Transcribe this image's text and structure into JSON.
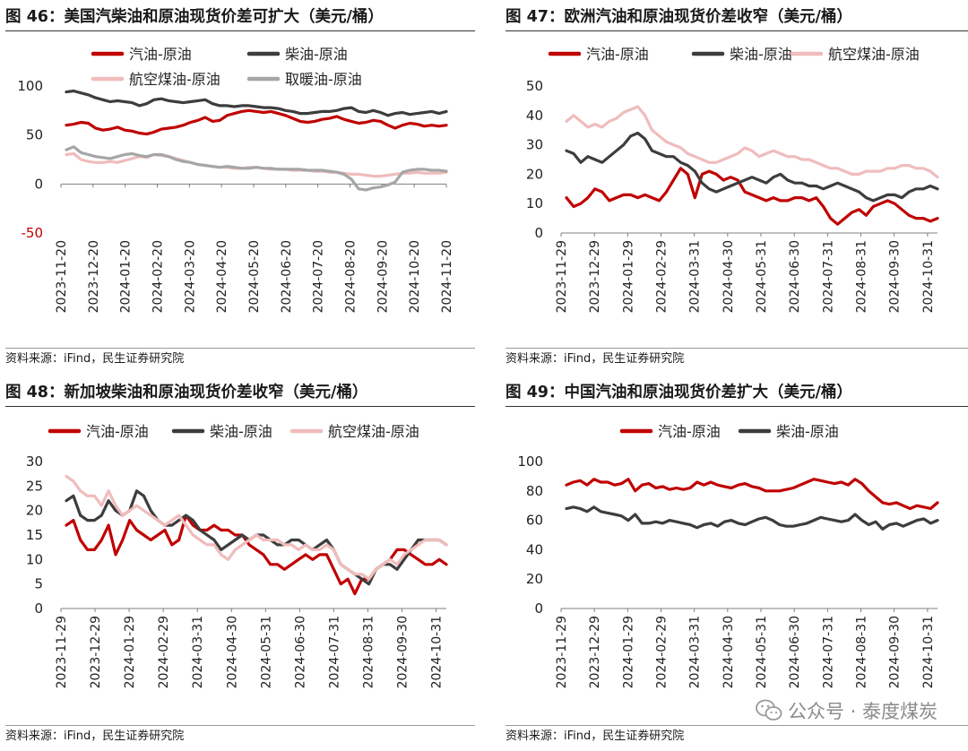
{
  "panels": [
    {
      "title": "图 46：美国汽柴油和原油现货价差可扩大（美元/桶）",
      "source": "资料来源：iFind，民生证券研究院"
    },
    {
      "title": "图 47：欧洲汽油和原油现货价差收窄（美元/桶）",
      "source": "资料来源：iFind，民生证券研究院"
    },
    {
      "title": "图 48：新加坡柴油和原油现货价差收窄（美元/桶）",
      "source": "资料来源：iFind，民生证券研究院"
    },
    {
      "title": "图 49：中国汽油和原油现货价差扩大（美元/桶）",
      "source": "资料来源：iFind，民生证券研究院"
    }
  ],
  "watermark": "公众号 · 泰度煤炭",
  "colors": {
    "gasoline": "#c00000",
    "diesel": "#3d3d3d",
    "jet": "#f0bcbc",
    "heating": "#a6a6a6"
  },
  "chart_data": [
    {
      "type": "line",
      "ylim": [
        -50,
        100
      ],
      "yticks": [
        -50,
        0,
        50,
        100
      ],
      "x_tick_labels": [
        "2023-11-20",
        "2023-12-20",
        "2024-01-20",
        "2024-02-20",
        "2024-03-20",
        "2024-04-20",
        "2024-05-20",
        "2024-06-20",
        "2024-07-20",
        "2024-08-20",
        "2024-09-20",
        "2024-10-20",
        "2024-11-20"
      ],
      "series": [
        {
          "name": "汽油-原油",
          "color": "#c00000",
          "values": [
            60,
            61,
            63,
            62,
            57,
            55,
            56,
            58,
            55,
            54,
            52,
            51,
            53,
            56,
            57,
            58,
            60,
            63,
            65,
            68,
            64,
            65,
            70,
            72,
            74,
            75,
            74,
            73,
            74,
            72,
            70,
            67,
            64,
            63,
            64,
            66,
            67,
            69,
            66,
            64,
            62,
            63,
            65,
            64,
            60,
            57,
            60,
            62,
            61,
            59,
            60,
            59,
            60
          ]
        },
        {
          "name": "柴油-原油",
          "color": "#3d3d3d",
          "values": [
            94,
            95,
            93,
            91,
            88,
            86,
            84,
            85,
            84,
            83,
            80,
            82,
            86,
            87,
            85,
            84,
            83,
            84,
            85,
            86,
            82,
            80,
            80,
            79,
            80,
            80,
            79,
            78,
            78,
            77,
            75,
            74,
            72,
            72,
            73,
            74,
            74,
            75,
            77,
            78,
            74,
            73,
            75,
            73,
            70,
            72,
            73,
            71,
            72,
            73,
            74,
            72,
            74
          ]
        },
        {
          "name": "航空煤油-原油",
          "color": "#f0bcbc",
          "values": [
            30,
            31,
            25,
            23,
            22,
            22,
            23,
            22,
            24,
            26,
            28,
            27,
            30,
            29,
            28,
            26,
            24,
            22,
            20,
            19,
            18,
            17,
            17,
            16,
            16,
            17,
            17,
            16,
            15,
            15,
            15,
            14,
            14,
            14,
            13,
            13,
            12,
            12,
            11,
            10,
            10,
            9,
            8,
            8,
            9,
            10,
            11,
            11,
            12,
            11,
            11,
            11,
            12
          ]
        },
        {
          "name": "取暖油-原油",
          "color": "#a6a6a6",
          "values": [
            35,
            38,
            32,
            30,
            28,
            27,
            26,
            28,
            30,
            31,
            29,
            28,
            30,
            30,
            28,
            25,
            23,
            22,
            20,
            19,
            18,
            17,
            18,
            17,
            16,
            16,
            17,
            16,
            16,
            15,
            15,
            15,
            15,
            14,
            14,
            14,
            13,
            12,
            10,
            5,
            -5,
            -6,
            -4,
            -3,
            -1,
            2,
            12,
            14,
            15,
            15,
            14,
            14,
            13
          ]
        }
      ]
    },
    {
      "type": "line",
      "ylim": [
        0,
        50
      ],
      "yticks": [
        0,
        10,
        20,
        30,
        40,
        50
      ],
      "x_tick_labels": [
        "2023-11-29",
        "2023-12-29",
        "2024-01-29",
        "2024-02-29",
        "2024-03-31",
        "2024-04-30",
        "2024-05-31",
        "2024-06-30",
        "2024-07-31",
        "2024-08-31",
        "2024-09-30",
        "2024-10-31"
      ],
      "series": [
        {
          "name": "汽油-原油",
          "color": "#c00000",
          "values": [
            12,
            9,
            10,
            12,
            15,
            14,
            11,
            12,
            13,
            13,
            12,
            13,
            12,
            11,
            14,
            18,
            22,
            20,
            12,
            20,
            21,
            20,
            18,
            19,
            18,
            14,
            13,
            12,
            11,
            12,
            11,
            11,
            12,
            12,
            11,
            12,
            9,
            5,
            3,
            5,
            7,
            8,
            6,
            9,
            10,
            11,
            10,
            8,
            6,
            5,
            5,
            4,
            5
          ]
        },
        {
          "name": "柴油-原油",
          "color": "#3d3d3d",
          "values": [
            28,
            27,
            24,
            26,
            25,
            24,
            26,
            28,
            30,
            33,
            34,
            32,
            28,
            27,
            26,
            26,
            24,
            23,
            21,
            17,
            15,
            14,
            15,
            16,
            17,
            18,
            19,
            18,
            17,
            19,
            20,
            18,
            17,
            17,
            16,
            16,
            15,
            16,
            17,
            16,
            15,
            14,
            12,
            11,
            12,
            13,
            13,
            12,
            14,
            15,
            15,
            16,
            15
          ]
        },
        {
          "name": "航空煤油-原油",
          "color": "#f0bcbc",
          "values": [
            38,
            40,
            38,
            36,
            37,
            36,
            38,
            39,
            41,
            42,
            43,
            40,
            35,
            33,
            31,
            30,
            29,
            27,
            26,
            25,
            24,
            24,
            25,
            26,
            27,
            29,
            28,
            26,
            27,
            28,
            27,
            26,
            26,
            25,
            25,
            24,
            23,
            22,
            22,
            21,
            20,
            20,
            21,
            21,
            21,
            22,
            22,
            23,
            23,
            22,
            22,
            21,
            19
          ]
        }
      ]
    },
    {
      "type": "line",
      "ylim": [
        0,
        30
      ],
      "yticks": [
        0,
        5,
        10,
        15,
        20,
        25,
        30
      ],
      "x_tick_labels": [
        "2023-11-29",
        "2023-12-29",
        "2024-01-29",
        "2024-02-29",
        "2024-03-31",
        "2024-04-30",
        "2024-05-31",
        "2024-06-30",
        "2024-07-31",
        "2024-08-31",
        "2024-09-30",
        "2024-10-31"
      ],
      "series": [
        {
          "name": "汽油-原油",
          "color": "#c00000",
          "values": [
            17,
            18,
            14,
            12,
            12,
            14,
            17,
            11,
            14,
            18,
            16,
            15,
            14,
            15,
            16,
            13,
            14,
            19,
            17,
            16,
            16,
            17,
            16,
            16,
            15,
            15,
            13,
            12,
            11,
            9,
            9,
            8,
            9,
            10,
            11,
            10,
            11,
            11,
            8,
            5,
            6,
            3,
            6,
            6,
            8,
            9,
            10,
            12,
            12,
            11,
            10,
            9,
            9,
            10,
            9
          ]
        },
        {
          "name": "柴油-原油",
          "color": "#3d3d3d",
          "values": [
            22,
            23,
            19,
            18,
            18,
            19,
            22,
            20,
            19,
            20,
            24,
            23,
            20,
            18,
            17,
            17,
            18,
            19,
            18,
            16,
            15,
            14,
            12,
            13,
            14,
            15,
            14,
            15,
            15,
            14,
            13,
            13,
            14,
            14,
            13,
            12,
            13,
            14,
            12,
            9,
            8,
            7,
            6,
            5,
            8,
            9,
            9,
            8,
            10,
            12,
            14,
            14,
            14,
            14,
            13
          ]
        },
        {
          "name": "航空煤油-原油",
          "color": "#f0bcbc",
          "values": [
            27,
            26,
            24,
            23,
            23,
            21,
            24,
            21,
            19,
            20,
            21,
            20,
            19,
            18,
            17,
            18,
            19,
            17,
            15,
            14,
            13,
            13,
            11,
            10,
            12,
            13,
            14,
            15,
            14,
            14,
            14,
            13,
            13,
            12,
            13,
            12,
            12,
            13,
            12,
            9,
            8,
            7,
            7,
            6,
            8,
            9,
            10,
            9,
            11,
            12,
            13,
            14,
            14,
            14,
            13
          ]
        }
      ]
    },
    {
      "type": "line",
      "ylim": [
        0,
        100
      ],
      "yticks": [
        0,
        20,
        40,
        60,
        80,
        100
      ],
      "x_tick_labels": [
        "2023-11-29",
        "2023-12-29",
        "2024-01-29",
        "2024-02-29",
        "2024-03-31",
        "2024-04-30",
        "2024-05-31",
        "2024-06-30",
        "2024-07-31",
        "2024-08-31",
        "2024-09-30",
        "2024-10-31"
      ],
      "series": [
        {
          "name": "汽油-原油",
          "color": "#c00000",
          "values": [
            84,
            86,
            87,
            84,
            88,
            86,
            86,
            84,
            85,
            88,
            80,
            84,
            85,
            82,
            83,
            81,
            82,
            81,
            82,
            86,
            84,
            86,
            84,
            83,
            82,
            84,
            85,
            83,
            82,
            80,
            80,
            80,
            81,
            82,
            84,
            86,
            88,
            87,
            86,
            85,
            86,
            84,
            88,
            85,
            80,
            76,
            72,
            71,
            72,
            70,
            68,
            70,
            69,
            68,
            72
          ]
        },
        {
          "name": "柴油-原油",
          "color": "#3d3d3d",
          "values": [
            68,
            69,
            68,
            66,
            69,
            66,
            65,
            64,
            63,
            60,
            64,
            58,
            58,
            59,
            58,
            60,
            59,
            58,
            57,
            55,
            57,
            58,
            56,
            59,
            60,
            58,
            57,
            59,
            61,
            62,
            60,
            57,
            56,
            56,
            57,
            58,
            60,
            62,
            61,
            60,
            59,
            60,
            64,
            60,
            57,
            59,
            54,
            57,
            58,
            56,
            58,
            60,
            61,
            58,
            60
          ]
        }
      ]
    }
  ]
}
